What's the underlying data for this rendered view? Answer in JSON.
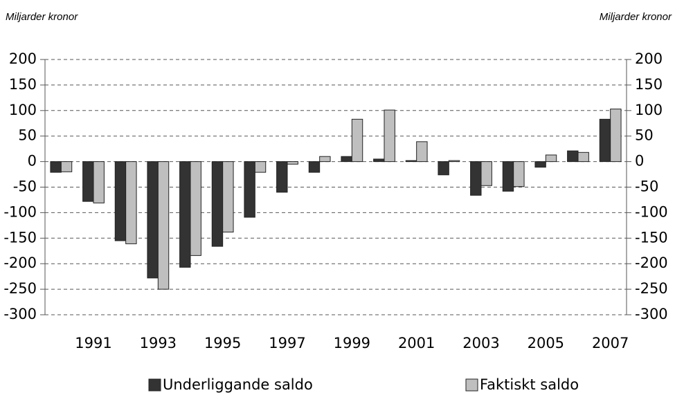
{
  "chart_data": {
    "type": "bar",
    "y_label": "Miljarder kronor",
    "y2_label": "Miljarder kronor",
    "categories": [
      null,
      "1991",
      null,
      "1993",
      null,
      "1995",
      null,
      "1997",
      null,
      "1999",
      null,
      "2001",
      null,
      "2003",
      null,
      "2005",
      null,
      "2007"
    ],
    "series": [
      {
        "name": "Underliggande saldo",
        "color": "#333333",
        "values": [
          -21,
          -78,
          -155,
          -228,
          -207,
          -166,
          -109,
          -60,
          -21,
          10,
          5,
          2,
          -26,
          -66,
          -58,
          -11,
          21,
          83
        ]
      },
      {
        "name": "Faktiskt saldo",
        "color": "#bfbfbf",
        "values": [
          -20,
          -81,
          -161,
          -250,
          -184,
          -138,
          -21,
          -5,
          10,
          83,
          101,
          39,
          2,
          -47,
          -49,
          13,
          18,
          103
        ]
      }
    ],
    "ylim": [
      -300,
      200
    ],
    "yticks": [
      -300,
      -250,
      -200,
      -150,
      -100,
      -50,
      0,
      50,
      100,
      150,
      200
    ],
    "y2lim": [
      -300,
      200
    ],
    "y2ticks": [
      -300,
      -250,
      -200,
      -150,
      -100,
      -50,
      0,
      50,
      100,
      150,
      200
    ],
    "grid": true
  }
}
